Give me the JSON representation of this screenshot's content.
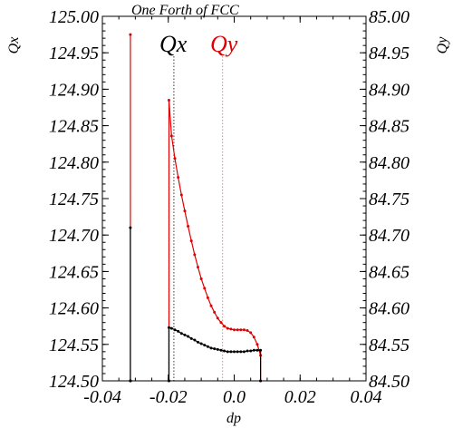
{
  "chart_data": {
    "type": "line",
    "title": "One Forth of FCC",
    "xlabel": "dp",
    "ylabel_left": "Qx",
    "ylabel_right": "Qy",
    "xlim": [
      -0.04,
      0.04
    ],
    "ylim_left": [
      124.5,
      125.0
    ],
    "ylim_right": [
      84.5,
      85.0
    ],
    "x_ticks": [
      -0.04,
      -0.02,
      0.0,
      0.02,
      0.04
    ],
    "x_tick_labels": [
      "-0.04",
      "-0.02",
      "0.0",
      "0.02",
      "0.04"
    ],
    "y_ticks_left": [
      124.5,
      124.55,
      124.6,
      124.65,
      124.7,
      124.75,
      124.8,
      124.85,
      124.9,
      124.95,
      125.0
    ],
    "y_tick_labels_left": [
      "124.50",
      "124.55",
      "124.60",
      "124.65",
      "124.70",
      "124.75",
      "124.80",
      "124.85",
      "124.90",
      "124.95",
      "125.00"
    ],
    "y_ticks_right": [
      84.5,
      84.55,
      84.6,
      84.65,
      84.7,
      84.75,
      84.8,
      84.85,
      84.9,
      84.95,
      85.0
    ],
    "y_tick_labels_right": [
      "84.50",
      "84.55",
      "84.60",
      "84.65",
      "84.70",
      "84.75",
      "84.80",
      "84.85",
      "84.90",
      "84.95",
      "85.00"
    ],
    "grid": false,
    "series": [
      {
        "name": "Qx",
        "color": "#000000",
        "axis": "left",
        "x": [
          -0.0315,
          -0.0315,
          -0.0315,
          null,
          -0.0198,
          -0.0198,
          -0.019,
          -0.018,
          -0.017,
          -0.016,
          -0.015,
          -0.014,
          -0.013,
          -0.012,
          -0.011,
          -0.01,
          -0.009,
          -0.008,
          -0.007,
          -0.006,
          -0.005,
          -0.004,
          -0.003,
          -0.002,
          -0.001,
          0.0,
          0.001,
          0.002,
          0.003,
          0.004,
          0.005,
          0.006,
          0.007,
          0.008,
          0.008
        ],
        "y": [
          124.5,
          124.71,
          124.5,
          null,
          124.5,
          124.573,
          124.572,
          124.57,
          124.568,
          124.565,
          124.563,
          124.561,
          124.558,
          124.556,
          124.553,
          124.551,
          124.549,
          124.547,
          124.545,
          124.544,
          124.543,
          124.542,
          124.541,
          124.54,
          124.54,
          124.54,
          124.54,
          124.54,
          124.54,
          124.541,
          124.541,
          124.542,
          124.542,
          124.542,
          124.5
        ]
      },
      {
        "name": "Qy",
        "color": "#e00000",
        "axis": "right",
        "x": [
          -0.0315,
          -0.0315,
          -0.0315,
          null,
          -0.0198,
          -0.0198,
          -0.019,
          -0.018,
          -0.017,
          -0.016,
          -0.015,
          -0.014,
          -0.013,
          -0.012,
          -0.011,
          -0.01,
          -0.009,
          -0.008,
          -0.007,
          -0.006,
          -0.005,
          -0.004,
          -0.003,
          -0.002,
          -0.001,
          0.0,
          0.001,
          0.002,
          0.003,
          0.004,
          0.005,
          0.006,
          0.007,
          0.008,
          0.008
        ],
        "y": [
          84.5,
          84.975,
          84.5,
          null,
          84.5,
          84.885,
          84.836,
          84.805,
          84.779,
          84.755,
          84.733,
          84.712,
          84.692,
          84.673,
          84.656,
          84.64,
          84.627,
          84.614,
          84.603,
          84.594,
          84.586,
          84.58,
          84.575,
          84.572,
          84.571,
          84.57,
          84.57,
          84.57,
          84.57,
          84.569,
          84.566,
          84.56,
          84.55,
          84.535,
          84.5
        ]
      }
    ],
    "reference_lines": [
      {
        "series": "Qx",
        "x": -0.0183,
        "color": "#000000"
      },
      {
        "series": "Qy",
        "x": -0.0035,
        "color": "#e06060"
      }
    ]
  }
}
